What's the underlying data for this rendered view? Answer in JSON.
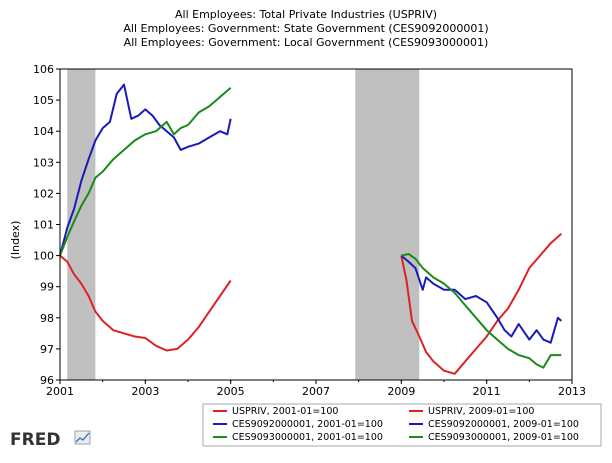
{
  "chart_data": {
    "type": "line",
    "title_lines": [
      "All Employees: Total Private Industries (USPRIV)",
      "All Employees: Government: State Government (CES9092000001)",
      "All Employees: Government: Local Government (CES9093000001)"
    ],
    "ylabel": "(Index)",
    "xlabel": "",
    "xlim": [
      2001.0,
      2013.0
    ],
    "ylim": [
      96,
      106
    ],
    "x_ticks": [
      "2001",
      "2003",
      "2005",
      "2007",
      "2009",
      "2011",
      "2013"
    ],
    "x_tick_values": [
      2001,
      2003,
      2005,
      2007,
      2009,
      2011,
      2013
    ],
    "y_ticks": [
      96,
      97,
      98,
      99,
      100,
      101,
      102,
      103,
      104,
      105,
      106
    ],
    "recessions": [
      [
        2001.17,
        2001.83
      ],
      [
        2007.92,
        2009.42
      ]
    ],
    "grid": false,
    "legend_position": "bottom-right",
    "series": [
      {
        "name": "USPRIV, 2001-01=100",
        "color": "#dd2222",
        "x": [
          2001.0,
          2001.17,
          2001.33,
          2001.5,
          2001.67,
          2001.83,
          2002.0,
          2002.25,
          2002.5,
          2002.75,
          2003.0,
          2003.25,
          2003.5,
          2003.75,
          2004.0,
          2004.25,
          2004.5,
          2004.75,
          2005.0
        ],
        "y": [
          100.0,
          99.8,
          99.4,
          99.1,
          98.7,
          98.2,
          97.9,
          97.6,
          97.5,
          97.4,
          97.35,
          97.1,
          96.95,
          97.0,
          97.3,
          97.7,
          98.2,
          98.7,
          99.2
        ]
      },
      {
        "name": "CES9092000001, 2001-01=100",
        "color": "#1a1ab8",
        "x": [
          2001.0,
          2001.17,
          2001.33,
          2001.5,
          2001.67,
          2001.83,
          2002.0,
          2002.17,
          2002.33,
          2002.5,
          2002.67,
          2002.83,
          2003.0,
          2003.17,
          2003.33,
          2003.5,
          2003.67,
          2003.83,
          2004.0,
          2004.25,
          2004.5,
          2004.75,
          2004.92,
          2005.0
        ],
        "y": [
          100.0,
          100.9,
          101.5,
          102.4,
          103.1,
          103.7,
          104.1,
          104.3,
          105.2,
          105.5,
          104.4,
          104.5,
          104.7,
          104.5,
          104.2,
          104.0,
          103.8,
          103.4,
          103.5,
          103.6,
          103.8,
          104.0,
          103.9,
          104.4
        ]
      },
      {
        "name": "CES9093000001, 2001-01=100",
        "color": "#1a8a1a",
        "x": [
          2001.0,
          2001.17,
          2001.33,
          2001.5,
          2001.67,
          2001.83,
          2002.0,
          2002.25,
          2002.5,
          2002.75,
          2003.0,
          2003.25,
          2003.5,
          2003.67,
          2003.83,
          2004.0,
          2004.25,
          2004.5,
          2004.75,
          2005.0
        ],
        "y": [
          100.0,
          100.6,
          101.1,
          101.6,
          102.0,
          102.5,
          102.7,
          103.1,
          103.4,
          103.7,
          103.9,
          104.0,
          104.3,
          103.9,
          104.1,
          104.2,
          104.6,
          104.8,
          105.1,
          105.4
        ]
      },
      {
        "name": "USPRIV, 2009-01=100",
        "color": "#dd2222",
        "x": [
          2009.0,
          2009.12,
          2009.25,
          2009.42,
          2009.58,
          2009.75,
          2010.0,
          2010.25,
          2010.5,
          2010.75,
          2011.0,
          2011.25,
          2011.5,
          2011.75,
          2012.0,
          2012.25,
          2012.5,
          2012.75
        ],
        "y": [
          100.0,
          99.2,
          97.9,
          97.4,
          96.9,
          96.6,
          96.3,
          96.2,
          96.6,
          97.0,
          97.4,
          97.9,
          98.3,
          98.9,
          99.6,
          100.0,
          100.4,
          100.7
        ]
      },
      {
        "name": "CES9092000001, 2009-01=100",
        "color": "#1a1ab8",
        "x": [
          2009.0,
          2009.17,
          2009.33,
          2009.5,
          2009.58,
          2009.75,
          2010.0,
          2010.25,
          2010.5,
          2010.75,
          2011.0,
          2011.25,
          2011.42,
          2011.58,
          2011.75,
          2012.0,
          2012.17,
          2012.33,
          2012.5,
          2012.67,
          2012.75
        ],
        "y": [
          100.0,
          99.8,
          99.6,
          98.9,
          99.3,
          99.1,
          98.9,
          98.9,
          98.6,
          98.7,
          98.5,
          98.0,
          97.6,
          97.4,
          97.8,
          97.3,
          97.6,
          97.3,
          97.2,
          98.0,
          97.9
        ]
      },
      {
        "name": "CES9093000001, 2009-01=100",
        "color": "#1a8a1a",
        "x": [
          2009.0,
          2009.17,
          2009.33,
          2009.5,
          2009.75,
          2010.0,
          2010.25,
          2010.5,
          2010.75,
          2011.0,
          2011.25,
          2011.5,
          2011.75,
          2012.0,
          2012.17,
          2012.33,
          2012.5,
          2012.58,
          2012.75
        ],
        "y": [
          100.0,
          100.05,
          99.9,
          99.6,
          99.3,
          99.1,
          98.8,
          98.4,
          98.0,
          97.6,
          97.3,
          97.0,
          96.8,
          96.7,
          96.5,
          96.4,
          96.8,
          96.8,
          96.8
        ]
      }
    ]
  },
  "footer": {
    "logo": "FRED"
  },
  "colors": {
    "recession_band": "#c0c0c0",
    "axis": "#000000",
    "legend_border": "#aaaaaa"
  }
}
